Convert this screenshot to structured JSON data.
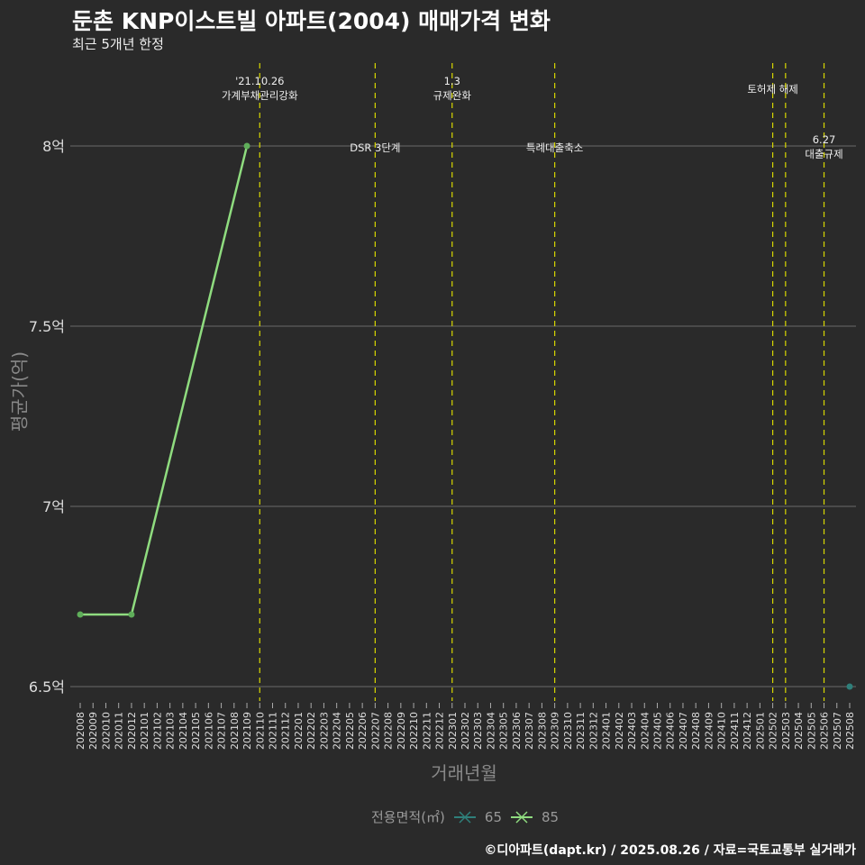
{
  "title": "둔촌 KNP이스트빌 아파트(2004) 매매가격 변화",
  "subtitle": "최근 5개년 한정",
  "caption": "©디아파트(dapt.kr) / 2025.08.26 / 자료=국토교통부 실거래가",
  "chart_data": {
    "type": "line",
    "xlabel": "거래년월",
    "ylabel": "평균가(억)",
    "x": [
      "202008",
      "202009",
      "202010",
      "202011",
      "202012",
      "202101",
      "202102",
      "202103",
      "202104",
      "202105",
      "202106",
      "202107",
      "202108",
      "202109",
      "202110",
      "202111",
      "202112",
      "202201",
      "202202",
      "202203",
      "202204",
      "202205",
      "202206",
      "202207",
      "202208",
      "202209",
      "202210",
      "202211",
      "202212",
      "202301",
      "202302",
      "202303",
      "202304",
      "202305",
      "202306",
      "202307",
      "202308",
      "202309",
      "202310",
      "202311",
      "202312",
      "202401",
      "202402",
      "202403",
      "202404",
      "202405",
      "202406",
      "202407",
      "202408",
      "202409",
      "202410",
      "202411",
      "202412",
      "202501",
      "202502",
      "202503",
      "202504",
      "202505",
      "202506",
      "202507",
      "202508"
    ],
    "yticks": [
      {
        "v": 6.5,
        "label": "6.5억"
      },
      {
        "v": 7,
        "label": "7억"
      },
      {
        "v": 7.5,
        "label": "7.5억"
      },
      {
        "v": 8,
        "label": "8억"
      }
    ],
    "ylim": [
      6.42,
      8.23
    ],
    "legend_title": "전용면적(㎡)",
    "series": [
      {
        "name": "65",
        "color": "#2f7f7a",
        "points": [
          {
            "x": "202508",
            "y": 6.5
          }
        ]
      },
      {
        "name": "85",
        "color": "#8fdc7f",
        "points": [
          {
            "x": "202008",
            "y": 6.7
          },
          {
            "x": "202012",
            "y": 6.7
          },
          {
            "x": "202109",
            "y": 8.0
          }
        ]
      }
    ],
    "events": [
      {
        "x": "202110",
        "lines": [
          "'21.10.26",
          "가계부채관리강화"
        ],
        "pos": "top"
      },
      {
        "x": "202207",
        "lines": [
          "DSR 3단계"
        ],
        "pos": "mid"
      },
      {
        "x": "202301",
        "lines": [
          "1.3",
          "규제완화"
        ],
        "pos": "top"
      },
      {
        "x": "202309",
        "lines": [
          "특례대출축소"
        ],
        "pos": "mid"
      },
      {
        "x": "202502",
        "lines": [
          "토허제 해제"
        ],
        "pos": "top2"
      },
      {
        "x": "202503",
        "lines": [],
        "pos": "none"
      },
      {
        "x": "202506",
        "lines": [
          "6.27",
          "대출규제"
        ],
        "pos": "low"
      }
    ]
  }
}
